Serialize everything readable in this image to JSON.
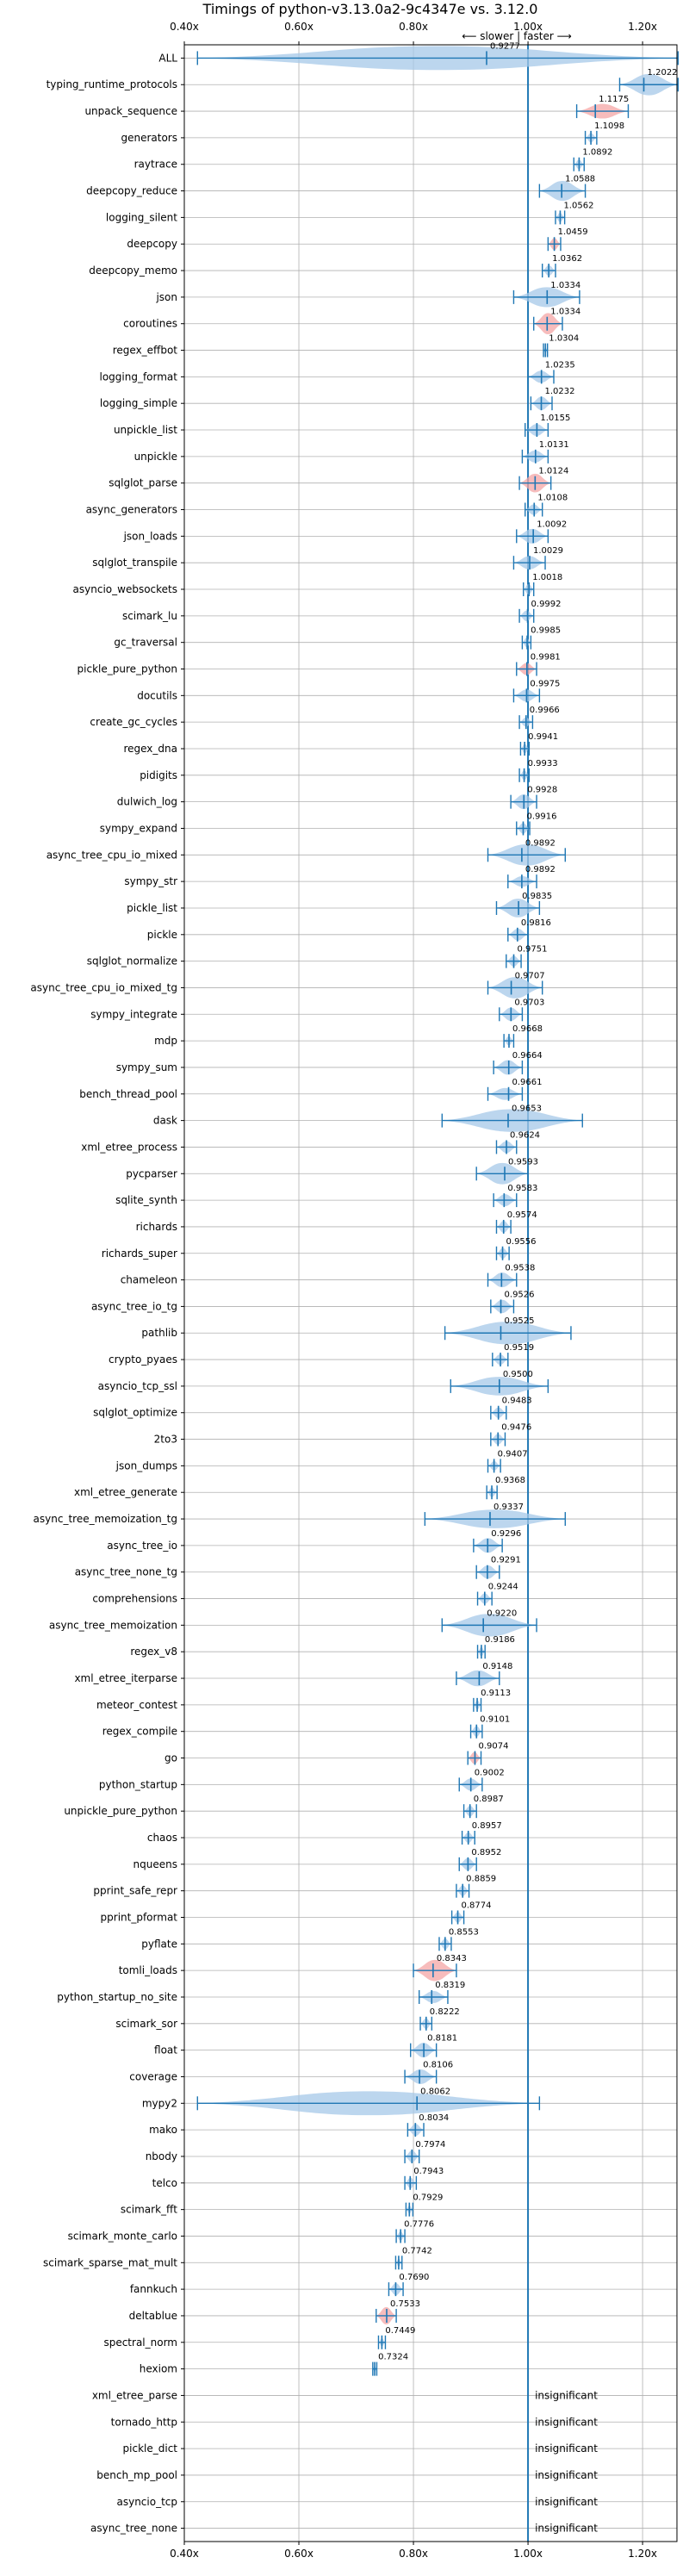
{
  "chart_data": {
    "type": "violin",
    "title": "Timings of python-v3.13.0a2-9c4347e vs. 3.12.0",
    "direction_label": "⟵ slower | faster ⟶",
    "xlim": [
      0.4,
      1.26
    ],
    "x_ticks": [
      0.4,
      0.6,
      0.8,
      1.0,
      1.2
    ],
    "x_tick_labels": [
      "0.40x",
      "0.60x",
      "0.80x",
      "1.00x",
      "1.20x"
    ],
    "reference_line": 1.0,
    "grid": true,
    "colors": {
      "violin": "#a6c8e8",
      "line": "#1f77b4",
      "highlight": "#f4a6a6"
    },
    "benchmarks": [
      {
        "name": "ALL",
        "value": 0.9277,
        "label": "0.9277",
        "min": 0.423,
        "max": 1.262,
        "width": 0.9,
        "highlight": false
      },
      {
        "name": "typing_runtime_protocols",
        "value": 1.2022,
        "label": "1.2022",
        "min": 1.16,
        "max": 1.262,
        "width": 0.8,
        "highlight": false
      },
      {
        "name": "unpack_sequence",
        "value": 1.1175,
        "label": "1.1175",
        "min": 1.085,
        "max": 1.175,
        "width": 0.55,
        "highlight": true
      },
      {
        "name": "generators",
        "value": 1.1098,
        "label": "1.1098",
        "min": 1.1,
        "max": 1.12,
        "width": 0.35,
        "highlight": false
      },
      {
        "name": "raytrace",
        "value": 1.0892,
        "label": "1.0892",
        "min": 1.08,
        "max": 1.098,
        "width": 0.35,
        "highlight": false
      },
      {
        "name": "deepcopy_reduce",
        "value": 1.0588,
        "label": "1.0588",
        "min": 1.02,
        "max": 1.1,
        "width": 0.75,
        "highlight": false
      },
      {
        "name": "logging_silent",
        "value": 1.0562,
        "label": "1.0562",
        "min": 1.048,
        "max": 1.064,
        "width": 0.35,
        "highlight": false
      },
      {
        "name": "deepcopy",
        "value": 1.0459,
        "label": "1.0459",
        "min": 1.035,
        "max": 1.057,
        "width": 0.45,
        "highlight": true
      },
      {
        "name": "deepcopy_memo",
        "value": 1.0362,
        "label": "1.0362",
        "min": 1.025,
        "max": 1.048,
        "width": 0.4,
        "highlight": false
      },
      {
        "name": "json",
        "value": 1.0334,
        "label": "1.0334",
        "min": 0.975,
        "max": 1.09,
        "width": 0.75,
        "highlight": false
      },
      {
        "name": "coroutines",
        "value": 1.0334,
        "label": "1.0334",
        "min": 1.01,
        "max": 1.06,
        "width": 0.8,
        "highlight": true
      },
      {
        "name": "regex_effbot",
        "value": 1.0304,
        "label": "1.0304",
        "min": 1.027,
        "max": 1.034,
        "width": 0.25,
        "highlight": false
      },
      {
        "name": "logging_format",
        "value": 1.0235,
        "label": "1.0235",
        "min": 1.0,
        "max": 1.045,
        "width": 0.45,
        "highlight": false
      },
      {
        "name": "logging_simple",
        "value": 1.0232,
        "label": "1.0232",
        "min": 1.005,
        "max": 1.042,
        "width": 0.5,
        "highlight": false
      },
      {
        "name": "unpickle_list",
        "value": 1.0155,
        "label": "1.0155",
        "min": 0.995,
        "max": 1.035,
        "width": 0.45,
        "highlight": false
      },
      {
        "name": "unpickle",
        "value": 1.0131,
        "label": "1.0131",
        "min": 0.99,
        "max": 1.035,
        "width": 0.45,
        "highlight": false
      },
      {
        "name": "sqlglot_parse",
        "value": 1.0124,
        "label": "1.0124",
        "min": 0.985,
        "max": 1.04,
        "width": 0.7,
        "highlight": true
      },
      {
        "name": "async_generators",
        "value": 1.0108,
        "label": "1.0108",
        "min": 0.995,
        "max": 1.025,
        "width": 0.4,
        "highlight": false
      },
      {
        "name": "json_loads",
        "value": 1.0092,
        "label": "1.0092",
        "min": 0.98,
        "max": 1.035,
        "width": 0.55,
        "highlight": false
      },
      {
        "name": "sqlglot_transpile",
        "value": 1.0029,
        "label": "1.0029",
        "min": 0.975,
        "max": 1.03,
        "width": 0.5,
        "highlight": false
      },
      {
        "name": "asyncio_websockets",
        "value": 1.0018,
        "label": "1.0018",
        "min": 0.992,
        "max": 1.01,
        "width": 0.4,
        "highlight": false
      },
      {
        "name": "scimark_lu",
        "value": 0.9992,
        "label": "0.9992",
        "min": 0.985,
        "max": 1.01,
        "width": 0.4,
        "highlight": false
      },
      {
        "name": "gc_traversal",
        "value": 0.9985,
        "label": "0.9985",
        "min": 0.99,
        "max": 1.005,
        "width": 0.35,
        "highlight": false
      },
      {
        "name": "pickle_pure_python",
        "value": 0.9981,
        "label": "0.9981",
        "min": 0.98,
        "max": 1.015,
        "width": 0.45,
        "highlight": true
      },
      {
        "name": "docutils",
        "value": 0.9975,
        "label": "0.9975",
        "min": 0.975,
        "max": 1.02,
        "width": 0.45,
        "highlight": false
      },
      {
        "name": "create_gc_cycles",
        "value": 0.9966,
        "label": "0.9966",
        "min": 0.985,
        "max": 1.008,
        "width": 0.35,
        "highlight": false
      },
      {
        "name": "regex_dna",
        "value": 0.9941,
        "label": "0.9941",
        "min": 0.987,
        "max": 1.002,
        "width": 0.35,
        "highlight": false
      },
      {
        "name": "pidigits",
        "value": 0.9933,
        "label": "0.9933",
        "min": 0.985,
        "max": 1.002,
        "width": 0.35,
        "highlight": false
      },
      {
        "name": "dulwich_log",
        "value": 0.9928,
        "label": "0.9928",
        "min": 0.97,
        "max": 1.015,
        "width": 0.55,
        "highlight": false
      },
      {
        "name": "sympy_expand",
        "value": 0.9916,
        "label": "0.9916",
        "min": 0.98,
        "max": 1.003,
        "width": 0.4,
        "highlight": false
      },
      {
        "name": "async_tree_cpu_io_mixed",
        "value": 0.9892,
        "label": "0.9892",
        "min": 0.93,
        "max": 1.065,
        "width": 0.8,
        "highlight": false
      },
      {
        "name": "sympy_str",
        "value": 0.9892,
        "label": "0.9892",
        "min": 0.965,
        "max": 1.015,
        "width": 0.4,
        "highlight": false
      },
      {
        "name": "pickle_list",
        "value": 0.9835,
        "label": "0.9835",
        "min": 0.945,
        "max": 1.02,
        "width": 0.7,
        "highlight": false
      },
      {
        "name": "pickle",
        "value": 0.9816,
        "label": "0.9816",
        "min": 0.965,
        "max": 1.0,
        "width": 0.45,
        "highlight": false
      },
      {
        "name": "sqlglot_normalize",
        "value": 0.9751,
        "label": "0.9751",
        "min": 0.962,
        "max": 0.988,
        "width": 0.4,
        "highlight": false
      },
      {
        "name": "async_tree_cpu_io_mixed_tg",
        "value": 0.9707,
        "label": "0.9707",
        "min": 0.93,
        "max": 1.025,
        "width": 0.8,
        "highlight": false
      },
      {
        "name": "sympy_integrate",
        "value": 0.9703,
        "label": "0.9703",
        "min": 0.95,
        "max": 0.99,
        "width": 0.5,
        "highlight": false
      },
      {
        "name": "mdp",
        "value": 0.9668,
        "label": "0.9668",
        "min": 0.958,
        "max": 0.975,
        "width": 0.35,
        "highlight": false
      },
      {
        "name": "sympy_sum",
        "value": 0.9664,
        "label": "0.9664",
        "min": 0.94,
        "max": 0.99,
        "width": 0.55,
        "highlight": false
      },
      {
        "name": "bench_thread_pool",
        "value": 0.9661,
        "label": "0.9661",
        "min": 0.93,
        "max": 0.99,
        "width": 0.45,
        "highlight": false
      },
      {
        "name": "dask",
        "value": 0.9653,
        "label": "0.9653",
        "min": 0.85,
        "max": 1.095,
        "width": 0.85,
        "highlight": false
      },
      {
        "name": "xml_etree_process",
        "value": 0.9624,
        "label": "0.9624",
        "min": 0.945,
        "max": 0.98,
        "width": 0.45,
        "highlight": false
      },
      {
        "name": "pycparser",
        "value": 0.9593,
        "label": "0.9593",
        "min": 0.91,
        "max": 1.0,
        "width": 0.8,
        "highlight": false
      },
      {
        "name": "sqlite_synth",
        "value": 0.9583,
        "label": "0.9583",
        "min": 0.94,
        "max": 0.98,
        "width": 0.45,
        "highlight": false
      },
      {
        "name": "richards",
        "value": 0.9574,
        "label": "0.9574",
        "min": 0.945,
        "max": 0.97,
        "width": 0.45,
        "highlight": false
      },
      {
        "name": "richards_super",
        "value": 0.9556,
        "label": "0.9556",
        "min": 0.945,
        "max": 0.967,
        "width": 0.4,
        "highlight": false
      },
      {
        "name": "chameleon",
        "value": 0.9538,
        "label": "0.9538",
        "min": 0.93,
        "max": 0.98,
        "width": 0.55,
        "highlight": false
      },
      {
        "name": "async_tree_io_tg",
        "value": 0.9526,
        "label": "0.9526",
        "min": 0.935,
        "max": 0.975,
        "width": 0.5,
        "highlight": false
      },
      {
        "name": "pathlib",
        "value": 0.9525,
        "label": "0.9525",
        "min": 0.855,
        "max": 1.075,
        "width": 0.85,
        "highlight": false
      },
      {
        "name": "crypto_pyaes",
        "value": 0.9519,
        "label": "0.9519",
        "min": 0.938,
        "max": 0.965,
        "width": 0.4,
        "highlight": false
      },
      {
        "name": "asyncio_tcp_ssl",
        "value": 0.95,
        "label": "0.9500",
        "min": 0.865,
        "max": 1.035,
        "width": 0.7,
        "highlight": false
      },
      {
        "name": "sqlglot_optimize",
        "value": 0.9483,
        "label": "0.9483",
        "min": 0.935,
        "max": 0.962,
        "width": 0.4,
        "highlight": false
      },
      {
        "name": "2to3",
        "value": 0.9476,
        "label": "0.9476",
        "min": 0.935,
        "max": 0.96,
        "width": 0.4,
        "highlight": false
      },
      {
        "name": "json_dumps",
        "value": 0.9407,
        "label": "0.9407",
        "min": 0.93,
        "max": 0.952,
        "width": 0.35,
        "highlight": false
      },
      {
        "name": "xml_etree_generate",
        "value": 0.9368,
        "label": "0.9368",
        "min": 0.928,
        "max": 0.946,
        "width": 0.35,
        "highlight": false
      },
      {
        "name": "async_tree_memoization_tg",
        "value": 0.9337,
        "label": "0.9337",
        "min": 0.82,
        "max": 1.065,
        "width": 0.7,
        "highlight": false
      },
      {
        "name": "async_tree_io",
        "value": 0.9296,
        "label": "0.9296",
        "min": 0.905,
        "max": 0.955,
        "width": 0.55,
        "highlight": false
      },
      {
        "name": "async_tree_none_tg",
        "value": 0.9291,
        "label": "0.9291",
        "min": 0.91,
        "max": 0.95,
        "width": 0.5,
        "highlight": false
      },
      {
        "name": "comprehensions",
        "value": 0.9244,
        "label": "0.9244",
        "min": 0.912,
        "max": 0.937,
        "width": 0.4,
        "highlight": false
      },
      {
        "name": "async_tree_memoization",
        "value": 0.922,
        "label": "0.9220",
        "min": 0.85,
        "max": 1.015,
        "width": 0.85,
        "highlight": false
      },
      {
        "name": "regex_v8",
        "value": 0.9186,
        "label": "0.9186",
        "min": 0.912,
        "max": 0.925,
        "width": 0.35,
        "highlight": false
      },
      {
        "name": "xml_etree_iterparse",
        "value": 0.9148,
        "label": "0.9148",
        "min": 0.875,
        "max": 0.95,
        "width": 0.6,
        "highlight": false
      },
      {
        "name": "meteor_contest",
        "value": 0.9113,
        "label": "0.9113",
        "min": 0.905,
        "max": 0.918,
        "width": 0.35,
        "highlight": false
      },
      {
        "name": "regex_compile",
        "value": 0.9101,
        "label": "0.9101",
        "min": 0.9,
        "max": 0.92,
        "width": 0.4,
        "highlight": false
      },
      {
        "name": "go",
        "value": 0.9074,
        "label": "0.9074",
        "min": 0.895,
        "max": 0.918,
        "width": 0.45,
        "highlight": true
      },
      {
        "name": "python_startup",
        "value": 0.9002,
        "label": "0.9002",
        "min": 0.88,
        "max": 0.92,
        "width": 0.45,
        "highlight": false
      },
      {
        "name": "unpickle_pure_python",
        "value": 0.8987,
        "label": "0.8987",
        "min": 0.888,
        "max": 0.91,
        "width": 0.4,
        "highlight": false
      },
      {
        "name": "chaos",
        "value": 0.8957,
        "label": "0.8957",
        "min": 0.885,
        "max": 0.907,
        "width": 0.4,
        "highlight": false
      },
      {
        "name": "nqueens",
        "value": 0.8952,
        "label": "0.8952",
        "min": 0.88,
        "max": 0.91,
        "width": 0.45,
        "highlight": false
      },
      {
        "name": "pprint_safe_repr",
        "value": 0.8859,
        "label": "0.8859",
        "min": 0.875,
        "max": 0.897,
        "width": 0.4,
        "highlight": false
      },
      {
        "name": "pprint_pformat",
        "value": 0.8774,
        "label": "0.8774",
        "min": 0.867,
        "max": 0.888,
        "width": 0.4,
        "highlight": false
      },
      {
        "name": "pyflate",
        "value": 0.8553,
        "label": "0.8553",
        "min": 0.845,
        "max": 0.866,
        "width": 0.4,
        "highlight": false
      },
      {
        "name": "tomli_loads",
        "value": 0.8343,
        "label": "0.8343",
        "min": 0.8,
        "max": 0.875,
        "width": 0.8,
        "highlight": true
      },
      {
        "name": "python_startup_no_site",
        "value": 0.8319,
        "label": "0.8319",
        "min": 0.81,
        "max": 0.86,
        "width": 0.45,
        "highlight": false
      },
      {
        "name": "scimark_sor",
        "value": 0.8222,
        "label": "0.8222",
        "min": 0.812,
        "max": 0.832,
        "width": 0.4,
        "highlight": false
      },
      {
        "name": "float",
        "value": 0.8181,
        "label": "0.8181",
        "min": 0.795,
        "max": 0.84,
        "width": 0.55,
        "highlight": false
      },
      {
        "name": "coverage",
        "value": 0.8106,
        "label": "0.8106",
        "min": 0.785,
        "max": 0.84,
        "width": 0.55,
        "highlight": false
      },
      {
        "name": "mypy2",
        "value": 0.8062,
        "label": "0.8062",
        "min": 0.423,
        "max": 1.02,
        "width": 0.9,
        "highlight": false
      },
      {
        "name": "mako",
        "value": 0.8034,
        "label": "0.8034",
        "min": 0.79,
        "max": 0.818,
        "width": 0.45,
        "highlight": false
      },
      {
        "name": "nbody",
        "value": 0.7974,
        "label": "0.7974",
        "min": 0.785,
        "max": 0.81,
        "width": 0.45,
        "highlight": false
      },
      {
        "name": "telco",
        "value": 0.7943,
        "label": "0.7943",
        "min": 0.785,
        "max": 0.805,
        "width": 0.4,
        "highlight": false
      },
      {
        "name": "scimark_fft",
        "value": 0.7929,
        "label": "0.7929",
        "min": 0.787,
        "max": 0.799,
        "width": 0.3,
        "highlight": false
      },
      {
        "name": "scimark_monte_carlo",
        "value": 0.7776,
        "label": "0.7776",
        "min": 0.77,
        "max": 0.785,
        "width": 0.35,
        "highlight": false
      },
      {
        "name": "scimark_sparse_mat_mult",
        "value": 0.7742,
        "label": "0.7742",
        "min": 0.769,
        "max": 0.78,
        "width": 0.3,
        "highlight": false
      },
      {
        "name": "fannkuch",
        "value": 0.769,
        "label": "0.7690",
        "min": 0.757,
        "max": 0.782,
        "width": 0.45,
        "highlight": false
      },
      {
        "name": "deltablue",
        "value": 0.7533,
        "label": "0.7533",
        "min": 0.735,
        "max": 0.77,
        "width": 0.65,
        "highlight": true
      },
      {
        "name": "spectral_norm",
        "value": 0.7449,
        "label": "0.7449",
        "min": 0.739,
        "max": 0.751,
        "width": 0.3,
        "highlight": false
      },
      {
        "name": "hexiom",
        "value": 0.7324,
        "label": "0.7324",
        "min": 0.729,
        "max": 0.736,
        "width": 0.25,
        "highlight": false
      },
      {
        "name": "xml_etree_parse",
        "value": null,
        "label": "insignificant",
        "highlight": false
      },
      {
        "name": "tornado_http",
        "value": null,
        "label": "insignificant",
        "highlight": false
      },
      {
        "name": "pickle_dict",
        "value": null,
        "label": "insignificant",
        "highlight": false
      },
      {
        "name": "bench_mp_pool",
        "value": null,
        "label": "insignificant",
        "highlight": false
      },
      {
        "name": "asyncio_tcp",
        "value": null,
        "label": "insignificant",
        "highlight": false
      },
      {
        "name": "async_tree_none",
        "value": null,
        "label": "insignificant",
        "highlight": false
      }
    ]
  }
}
